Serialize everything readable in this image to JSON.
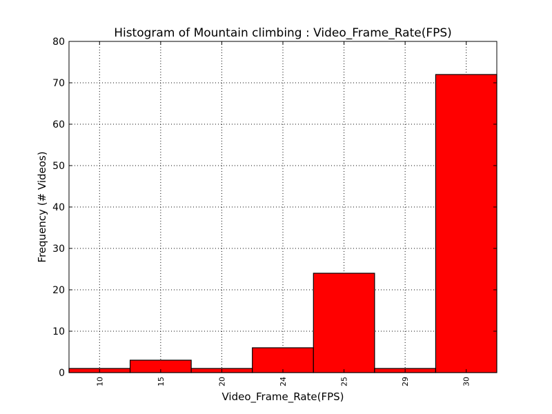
{
  "chart_data": {
    "type": "bar",
    "title": "Histogram of Mountain climbing : Video_Frame_Rate(FPS)",
    "xlabel": "Video_Frame_Rate(FPS)",
    "ylabel": "Frequency (# Videos)",
    "categories": [
      "10",
      "15",
      "20",
      "24",
      "25",
      "29",
      "30"
    ],
    "values": [
      1,
      3,
      1,
      6,
      24,
      1,
      72
    ],
    "ylim": [
      0,
      80
    ],
    "yticks": [
      "0",
      "10",
      "20",
      "30",
      "40",
      "50",
      "60",
      "70",
      "80"
    ],
    "grid": true,
    "bar_color": "#ff0000",
    "edge_color": "#000000"
  }
}
